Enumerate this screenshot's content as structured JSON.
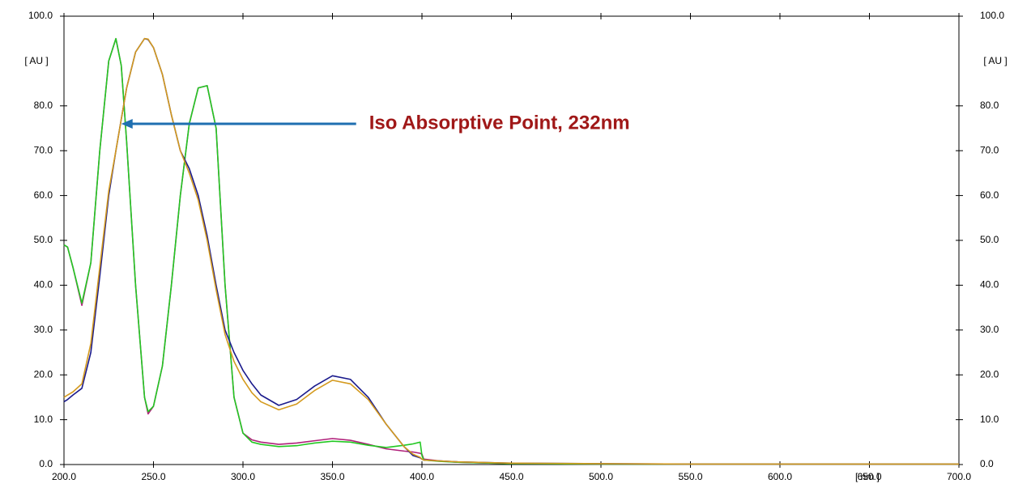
{
  "chart_data": {
    "type": "line",
    "x": [
      200,
      202,
      205,
      210,
      215,
      220,
      225,
      229,
      232,
      235,
      240,
      245,
      247,
      250,
      255,
      260,
      265,
      270,
      275,
      280,
      285,
      290,
      295,
      300,
      305,
      310,
      320,
      330,
      340,
      350,
      360,
      370,
      380,
      390,
      395,
      399,
      400,
      401,
      410,
      420,
      450,
      500,
      550,
      600,
      650,
      700
    ],
    "series": [
      {
        "color": "#b0207a",
        "values": [
          49,
          48.5,
          44,
          35.5,
          45,
          70,
          90,
          95,
          89,
          72,
          40,
          15,
          11.3,
          13,
          22,
          40,
          60,
          76,
          84,
          84.5,
          75,
          40,
          15,
          7,
          5.5,
          5,
          4.5,
          4.8,
          5.3,
          5.8,
          5.4,
          4.5,
          3.5,
          3,
          2.8,
          2.5,
          2.3,
          1.2,
          0.8,
          0.5,
          0.2,
          0.1,
          0.1,
          0.1,
          0.1,
          0.1
        ]
      },
      {
        "color": "#22c822",
        "values": [
          49,
          48.5,
          44,
          36,
          45,
          70,
          90,
          95,
          89,
          72,
          40,
          15,
          11.8,
          13,
          22,
          40,
          60,
          76,
          84,
          84.5,
          75,
          40,
          15,
          7,
          5,
          4.5,
          4,
          4.2,
          4.8,
          5.2,
          5,
          4.3,
          3.8,
          4.3,
          4.6,
          5,
          2,
          1,
          0.7,
          0.5,
          0.2,
          0.1,
          0.1,
          0.1,
          0.1,
          0.1
        ]
      },
      {
        "color": "#1a1a8c",
        "values": [
          14,
          14.5,
          15.5,
          17,
          25,
          42,
          60,
          70,
          77,
          84,
          92,
          95,
          94.8,
          93,
          87,
          78,
          70,
          66,
          60,
          51,
          40,
          30,
          25,
          21,
          18,
          15.5,
          13.2,
          14.5,
          17.5,
          19.8,
          19,
          15,
          9,
          4,
          2,
          1.5,
          1.2,
          1,
          0.8,
          0.6,
          0.3,
          0.2,
          0.1,
          0.1,
          0.1,
          0.1
        ]
      },
      {
        "color": "#d49a1e",
        "values": [
          15,
          15.5,
          16.2,
          18,
          27,
          44,
          61,
          70,
          77,
          84,
          92,
          95,
          94.9,
          93,
          87,
          78,
          70,
          65,
          59,
          50,
          39,
          29,
          23,
          19,
          16,
          14,
          12.2,
          13.5,
          16.5,
          18.8,
          18,
          14.5,
          9,
          4,
          2.3,
          1.6,
          1.2,
          1,
          0.8,
          0.6,
          0.3,
          0.2,
          0.1,
          0.1,
          0.1,
          0.1
        ]
      }
    ],
    "xlim": [
      200,
      700
    ],
    "xticks": [
      {
        "value": 200,
        "label": "200.0"
      },
      {
        "value": 250,
        "label": "250.0"
      },
      {
        "value": 300,
        "label": "300.0"
      },
      {
        "value": 350,
        "label": "350.0"
      },
      {
        "value": 400,
        "label": "400.0"
      },
      {
        "value": 450,
        "label": "450.0"
      },
      {
        "value": 500,
        "label": "500.0"
      },
      {
        "value": 550,
        "label": "550.0"
      },
      {
        "value": 600,
        "label": "600.0"
      },
      {
        "value": 650,
        "label": "650.0"
      },
      {
        "value": 700,
        "label": "700.0"
      }
    ],
    "xlabel": "[ nm ]",
    "ylim": [
      0,
      100
    ],
    "yticks": [
      {
        "value": 0,
        "label": "0.0"
      },
      {
        "value": 10,
        "label": "10.0"
      },
      {
        "value": 20,
        "label": "20.0"
      },
      {
        "value": 30,
        "label": "30.0"
      },
      {
        "value": 40,
        "label": "40.0"
      },
      {
        "value": 50,
        "label": "50.0"
      },
      {
        "value": 60,
        "label": "60.0"
      },
      {
        "value": 70,
        "label": "70.0"
      },
      {
        "value": 80,
        "label": "80.0"
      },
      {
        "value": 100,
        "label": "100.0"
      }
    ],
    "ylabel": "[ AU ]",
    "y2lim": [
      0,
      100
    ],
    "y2ticks": [
      {
        "value": 0,
        "label": "0.0"
      },
      {
        "value": 10,
        "label": "10.0"
      },
      {
        "value": 20,
        "label": "20.0"
      },
      {
        "value": 30,
        "label": "30.0"
      },
      {
        "value": 40,
        "label": "40.0"
      },
      {
        "value": 50,
        "label": "50.0"
      },
      {
        "value": 60,
        "label": "60.0"
      },
      {
        "value": 70,
        "label": "70.0"
      },
      {
        "value": 80,
        "label": "80.0"
      },
      {
        "value": 100,
        "label": "100.0"
      }
    ],
    "y2label": "[ AU ]",
    "annotation": {
      "text": "Iso Absorptive Point, 232nm",
      "x": 232,
      "y": 76,
      "color": "#1f6fb0"
    }
  }
}
